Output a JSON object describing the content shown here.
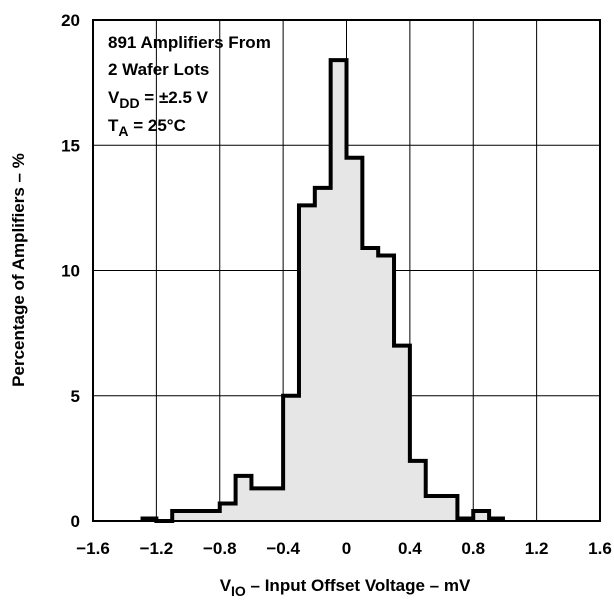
{
  "chart_data": {
    "type": "histogram",
    "xlabel_main": "V",
    "xlabel_sub": "IO",
    "xlabel_rest": " – Input Offset Voltage – mV",
    "ylabel": "Percentage of Amplifiers – %",
    "xlim": [
      -1.6,
      1.6
    ],
    "ylim": [
      0,
      20
    ],
    "x_ticks": [
      -1.6,
      -1.2,
      -0.8,
      -0.4,
      0,
      0.4,
      0.8,
      1.2,
      1.6
    ],
    "x_tick_labels": [
      "−1.6",
      "−1.2",
      "−0.8",
      "−0.4",
      "0",
      "0.4",
      "0.8",
      "1.2",
      "1.6"
    ],
    "y_ticks": [
      0,
      5,
      10,
      15,
      20
    ],
    "y_tick_labels": [
      "0",
      "5",
      "10",
      "15",
      "20"
    ],
    "grid": true,
    "bin_width": 0.1,
    "bins": [
      {
        "x": -1.25,
        "value": 0.1
      },
      {
        "x": -1.15,
        "value": 0.0
      },
      {
        "x": -1.05,
        "value": 0.4
      },
      {
        "x": -0.95,
        "value": 0.4
      },
      {
        "x": -0.85,
        "value": 0.4
      },
      {
        "x": -0.75,
        "value": 0.7
      },
      {
        "x": -0.65,
        "value": 1.8
      },
      {
        "x": -0.55,
        "value": 1.3
      },
      {
        "x": -0.45,
        "value": 1.3
      },
      {
        "x": -0.35,
        "value": 5.0
      },
      {
        "x": -0.25,
        "value": 12.6
      },
      {
        "x": -0.15,
        "value": 13.3
      },
      {
        "x": -0.05,
        "value": 18.4
      },
      {
        "x": 0.05,
        "value": 14.5
      },
      {
        "x": 0.15,
        "value": 10.9
      },
      {
        "x": 0.25,
        "value": 10.6
      },
      {
        "x": 0.35,
        "value": 7.0
      },
      {
        "x": 0.45,
        "value": 2.4
      },
      {
        "x": 0.55,
        "value": 1.0
      },
      {
        "x": 0.65,
        "value": 1.0
      },
      {
        "x": 0.75,
        "value": 0.1
      },
      {
        "x": 0.85,
        "value": 0.4
      },
      {
        "x": 0.95,
        "value": 0.1
      }
    ],
    "fill_color": "#e6e6e6",
    "line_color": "#000000",
    "annotation": {
      "line1": "891 Amplifiers From",
      "line2": "2 Wafer Lots",
      "line3_main": "V",
      "line3_sub": "DD",
      "line3_rest": " = ±2.5 V",
      "line4_main": "T",
      "line4_sub": "A",
      "line4_rest": " = 25°C"
    }
  }
}
